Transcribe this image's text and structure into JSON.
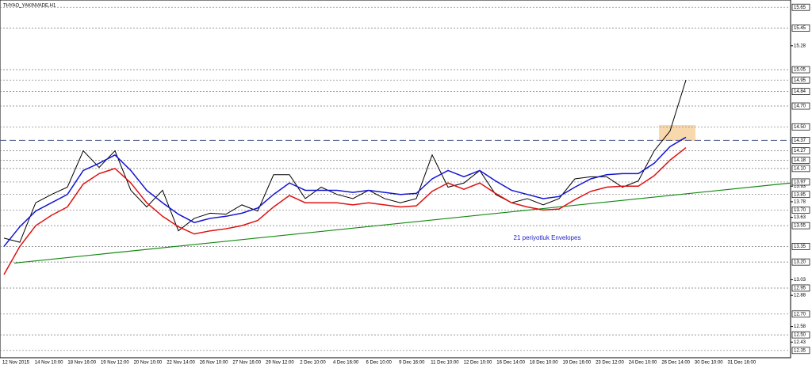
{
  "chart_data": {
    "type": "line",
    "title": "THYAO_YAKINVADE,H1",
    "annotation": "21 periyotluk Envelopes",
    "ylim": [
      12.28,
      15.72
    ],
    "yticks": [
      15.28,
      13.93,
      13.78,
      13.63,
      13.03,
      12.88,
      12.58,
      12.43
    ],
    "levels": [
      15.65,
      15.45,
      15.05,
      14.95,
      14.84,
      {
        "value": 14.7,
        "label": "14.70"
      },
      {
        "value": 14.5,
        "label": "14.50"
      },
      14.27,
      14.18,
      {
        "value": 14.1,
        "label": "14.10"
      },
      13.97,
      13.85,
      {
        "value": 13.7,
        "label": "13.70"
      },
      13.55,
      13.35,
      {
        "value": 13.2,
        "label": "13.20"
      },
      12.95,
      {
        "value": 12.7,
        "label": "12.70"
      },
      {
        "value": 12.5,
        "label": "12.50"
      },
      12.35
    ],
    "key_level": 14.37,
    "xlabels": [
      "12 Nov 2015",
      "14 Nov 10:00",
      "18 Nov 16:00",
      "19 Nov 12:00",
      "20 Nov 10:00",
      "22 Nov 14:00",
      "26 Nov 10:00",
      "27 Nov 16:00",
      "29 Nov 12:00",
      "2 Dec 10:00",
      "4 Dec 16:00",
      "6 Dec 10:00",
      "9 Dec 16:00",
      "11 Dec 10:00",
      "12 Dec 10:00",
      "16 Dec 14:00",
      "18 Dec 10:00",
      "19 Dec 16:00",
      "23 Dec 12:00",
      "24 Dec 10:00",
      "26 Dec 14:00",
      "30 Dec 10:00",
      "31 Dec 16:00"
    ],
    "series": [
      {
        "name": "Close",
        "color": "#000000",
        "values": [
          13.43,
          13.39,
          13.77,
          13.85,
          13.92,
          14.27,
          14.11,
          14.27,
          13.89,
          13.73,
          13.89,
          13.5,
          13.62,
          13.67,
          13.66,
          13.75,
          13.69,
          14.04,
          14.04,
          13.81,
          13.92,
          13.85,
          13.81,
          13.89,
          13.81,
          13.77,
          13.81,
          14.23,
          13.92,
          13.96,
          14.08,
          13.85,
          13.77,
          13.81,
          13.75,
          13.81,
          14.0,
          14.02,
          14.02,
          13.92,
          13.98,
          14.27,
          14.46,
          14.95
        ]
      },
      {
        "name": "Upper Envelope",
        "color": "#1414d2",
        "values": [
          13.35,
          13.54,
          13.69,
          13.77,
          13.85,
          14.08,
          14.15,
          14.23,
          14.08,
          13.89,
          13.77,
          13.66,
          13.58,
          13.62,
          13.64,
          13.67,
          13.72,
          13.85,
          13.96,
          13.89,
          13.89,
          13.89,
          13.87,
          13.89,
          13.87,
          13.85,
          13.86,
          14.0,
          14.08,
          14.02,
          14.08,
          13.98,
          13.89,
          13.85,
          13.81,
          13.83,
          13.92,
          14.0,
          14.04,
          14.05,
          14.05,
          14.15,
          14.31,
          14.4
        ]
      },
      {
        "name": "Lower Envelope",
        "color": "#e01010",
        "values": [
          13.08,
          13.35,
          13.55,
          13.65,
          13.73,
          13.95,
          14.05,
          14.1,
          13.96,
          13.77,
          13.64,
          13.54,
          13.47,
          13.5,
          13.52,
          13.55,
          13.6,
          13.73,
          13.84,
          13.77,
          13.77,
          13.77,
          13.75,
          13.77,
          13.75,
          13.73,
          13.74,
          13.88,
          13.96,
          13.9,
          13.96,
          13.86,
          13.77,
          13.73,
          13.7,
          13.71,
          13.8,
          13.88,
          13.92,
          13.93,
          13.93,
          14.03,
          14.18,
          14.3
        ]
      }
    ],
    "trendline": {
      "color": "#118811",
      "values": [
        13.19,
        13.96
      ]
    }
  }
}
